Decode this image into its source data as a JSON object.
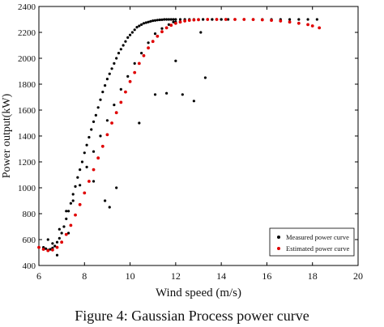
{
  "caption": "Figure 4: Gaussian Process power curve",
  "chart_data": {
    "type": "scatter",
    "xlabel": "Wind speed (m/s)",
    "ylabel": "Power output(kW)",
    "xlim": [
      6,
      20
    ],
    "ylim": [
      400,
      2400
    ],
    "xticks": [
      6,
      8,
      10,
      12,
      14,
      16,
      18,
      20
    ],
    "yticks": [
      400,
      600,
      800,
      1000,
      1200,
      1400,
      1600,
      1800,
      2000,
      2200,
      2400
    ],
    "grid": false,
    "legend_position": "bottom-right",
    "series": [
      {
        "name": "Measured power curve",
        "color": "#000000",
        "marker": "dot",
        "x": [
          6.2,
          6.3,
          6.4,
          6.5,
          6.6,
          6.7,
          6.8,
          6.9,
          7.0,
          7.1,
          7.2,
          7.3,
          7.4,
          7.5,
          7.6,
          7.7,
          7.8,
          7.9,
          8.0,
          8.1,
          8.2,
          8.3,
          8.4,
          8.5,
          8.6,
          8.7,
          8.8,
          8.9,
          9.0,
          9.1,
          9.2,
          9.3,
          9.4,
          9.5,
          9.6,
          9.7,
          9.8,
          9.9,
          10.0,
          10.1,
          10.2,
          10.3,
          10.4,
          10.5,
          10.6,
          10.7,
          10.8,
          10.9,
          11.0,
          11.1,
          11.2,
          11.3,
          11.4,
          11.5,
          11.6,
          11.7,
          11.8,
          11.9,
          12.0,
          12.2,
          12.4,
          12.6,
          12.8,
          13.0,
          13.2,
          13.4,
          13.6,
          13.8,
          14.0,
          14.3,
          14.6,
          15.0,
          15.4,
          15.8,
          16.2,
          16.6,
          17.0,
          17.4,
          17.8,
          18.2,
          6.4,
          6.6,
          6.9,
          7.2,
          7.5,
          7.8,
          8.1,
          8.4,
          8.7,
          9.0,
          9.3,
          9.6,
          9.9,
          10.2,
          10.5,
          10.8,
          11.1,
          11.4,
          11.7,
          12.0,
          12.4,
          12.8,
          13.2,
          13.6,
          14.0,
          8.9,
          9.1,
          9.4,
          11.1,
          11.6,
          12.3,
          12.8,
          13.3,
          10.4,
          12.0,
          13.1,
          11.9,
          6.8,
          7.3,
          8.4
        ],
        "y": [
          540,
          530,
          520,
          525,
          535,
          550,
          580,
          610,
          650,
          700,
          760,
          820,
          880,
          950,
          1010,
          1080,
          1140,
          1200,
          1270,
          1330,
          1390,
          1450,
          1510,
          1560,
          1620,
          1680,
          1740,
          1790,
          1840,
          1880,
          1920,
          1960,
          2000,
          2040,
          2070,
          2100,
          2130,
          2160,
          2180,
          2200,
          2220,
          2240,
          2250,
          2260,
          2270,
          2275,
          2280,
          2285,
          2290,
          2292,
          2295,
          2297,
          2298,
          2300,
          2300,
          2300,
          2300,
          2300,
          2300,
          2300,
          2300,
          2300,
          2300,
          2300,
          2300,
          2300,
          2300,
          2300,
          2300,
          2300,
          2300,
          2300,
          2300,
          2300,
          2300,
          2300,
          2300,
          2300,
          2300,
          2300,
          600,
          570,
          680,
          820,
          900,
          1020,
          1160,
          1280,
          1400,
          1520,
          1640,
          1760,
          1860,
          1960,
          2040,
          2120,
          2190,
          2230,
          2260,
          2280,
          2290,
          2295,
          2300,
          2300,
          2300,
          900,
          850,
          1000,
          1720,
          1730,
          1720,
          1670,
          1850,
          1500,
          1980,
          2200,
          2280,
          480,
          650,
          1050
        ]
      },
      {
        "name": "Estimated power curve",
        "color": "#e00000",
        "marker": "dot",
        "x": [
          6.0,
          6.2,
          6.4,
          6.6,
          6.8,
          7.0,
          7.2,
          7.4,
          7.6,
          7.8,
          8.0,
          8.2,
          8.4,
          8.6,
          8.8,
          9.0,
          9.2,
          9.4,
          9.6,
          9.8,
          10.0,
          10.2,
          10.4,
          10.6,
          10.8,
          11.0,
          11.2,
          11.4,
          11.6,
          11.8,
          12.0,
          12.2,
          12.4,
          12.6,
          12.8,
          13.0,
          13.4,
          13.8,
          14.2,
          14.6,
          15.0,
          15.4,
          15.8,
          16.2,
          16.6,
          17.0,
          17.4,
          17.8,
          18.0,
          18.3
        ],
        "y": [
          540,
          525,
          515,
          520,
          540,
          580,
          640,
          710,
          790,
          870,
          960,
          1050,
          1140,
          1230,
          1320,
          1410,
          1500,
          1580,
          1660,
          1740,
          1820,
          1890,
          1960,
          2020,
          2080,
          2130,
          2170,
          2205,
          2235,
          2255,
          2270,
          2280,
          2288,
          2293,
          2296,
          2298,
          2300,
          2300,
          2300,
          2300,
          2300,
          2299,
          2297,
          2293,
          2288,
          2280,
          2270,
          2260,
          2250,
          2235
        ]
      }
    ]
  }
}
